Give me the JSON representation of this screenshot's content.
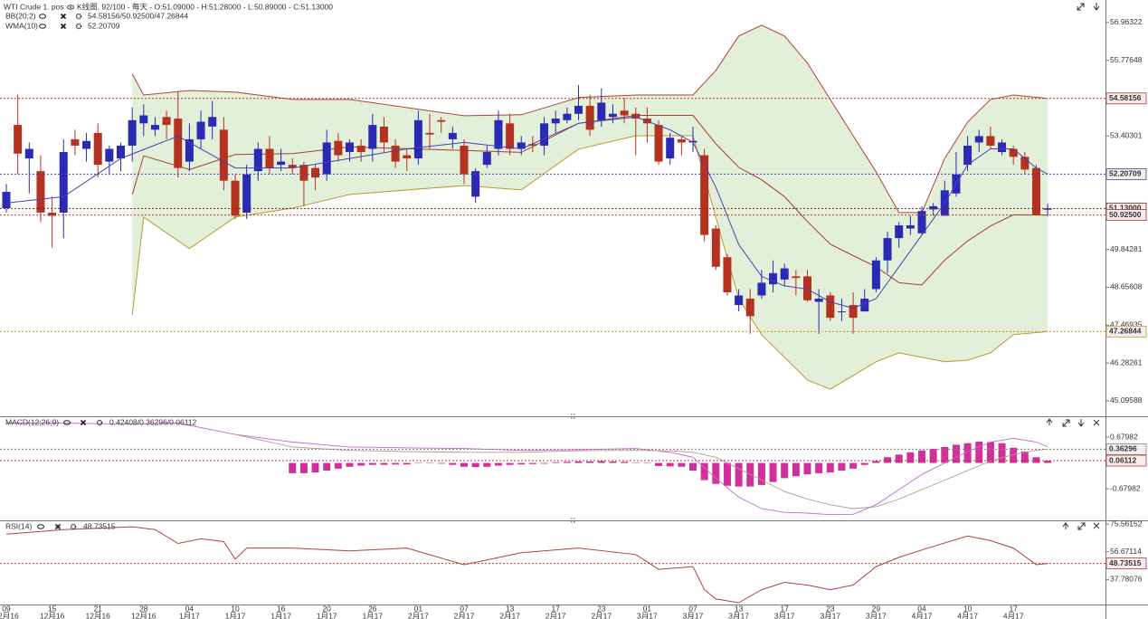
{
  "header": {
    "instrument": "WTI Crude 1. pos",
    "summary": "K线图, 92/100 - 每天 - O:51.09000 - H:51.28000 - L:50.89000 - C:51.13000"
  },
  "chart_data": [
    {
      "type": "candlestick",
      "categories": [
        "09",
        null,
        null,
        null,
        "15",
        null,
        null,
        null,
        "21",
        null,
        null,
        null,
        "28",
        null,
        null,
        null,
        "04",
        null,
        null,
        null,
        "10",
        null,
        null,
        null,
        "16",
        null,
        null,
        null,
        "20",
        null,
        null,
        null,
        "26",
        null,
        null,
        null,
        "01",
        null,
        null,
        null,
        "07",
        null,
        null,
        null,
        "13",
        null,
        null,
        null,
        "17",
        null,
        null,
        null,
        "23",
        null,
        null,
        null,
        "01",
        null,
        null,
        null,
        "07",
        null,
        null,
        null,
        "13",
        null,
        null,
        null,
        "17",
        null,
        null,
        null,
        "23",
        null,
        null,
        null,
        "29",
        null,
        null,
        null,
        "04",
        null,
        null,
        null,
        "10",
        null,
        null,
        null,
        "17",
        null,
        null,
        null
      ],
      "category_months": [
        "12月16",
        null,
        null,
        null,
        "12月16",
        null,
        null,
        null,
        "12月16",
        null,
        null,
        null,
        "12月16",
        null,
        null,
        null,
        "1月17",
        null,
        null,
        null,
        "1月17",
        null,
        null,
        null,
        "1月17",
        null,
        null,
        null,
        "1月17",
        null,
        null,
        null,
        "1月17",
        null,
        null,
        null,
        "2月17",
        null,
        null,
        null,
        "2月17",
        null,
        null,
        null,
        "2月17",
        null,
        null,
        null,
        "2月17",
        null,
        null,
        null,
        "2月17",
        null,
        null,
        null,
        "3月17",
        null,
        null,
        null,
        "3月17",
        null,
        null,
        null,
        "3月17",
        null,
        null,
        null,
        "3月17",
        null,
        null,
        null,
        "3月17",
        null,
        null,
        null,
        "3月17",
        null,
        null,
        null,
        "4月17",
        null,
        null,
        null,
        "4月17",
        null,
        null,
        null,
        "4月17",
        null,
        null,
        null
      ],
      "open": [
        51.14,
        53.75,
        52.7,
        52.3,
        51.0,
        51.0,
        53.3,
        53.0,
        53.5,
        52.6,
        52.7,
        53.1,
        53.8,
        53.6,
        54.0,
        53.95,
        52.6,
        53.3,
        53.7,
        53.6,
        52.0,
        51.0,
        52.3,
        53.0,
        52.5,
        52.5,
        52.5,
        52.4,
        52.2,
        53.25,
        52.9,
        53.1,
        53.0,
        53.7,
        53.1,
        52.8,
        52.7,
        53.5,
        53.9,
        53.3,
        53.1,
        51.5,
        52.5,
        53.0,
        53.8,
        53.0,
        53.15,
        53.1,
        53.8,
        53.9,
        54.1,
        54.35,
        53.9,
        54.0,
        54.2,
        54.1,
        53.95,
        53.75,
        52.7,
        53.3,
        53.2,
        52.8,
        50.5,
        49.6,
        48.1,
        48.3,
        48.4,
        48.75,
        48.9,
        49.0,
        49.0,
        48.2,
        48.4,
        47.9,
        48.1,
        47.9,
        48.6,
        49.5,
        50.2,
        50.5,
        50.35,
        51.1,
        50.9,
        51.6,
        52.5,
        53.2,
        53.4,
        52.9,
        53.0,
        52.75,
        52.4,
        51.09
      ],
      "high": [
        51.9,
        54.7,
        53.2,
        52.8,
        51.5,
        53.3,
        53.6,
        53.5,
        53.8,
        53.1,
        53.2,
        54.3,
        54.4,
        54.0,
        54.2,
        54.8,
        53.8,
        54.2,
        54.5,
        54.0,
        52.2,
        52.5,
        53.2,
        53.4,
        53.0,
        52.7,
        52.6,
        52.5,
        53.6,
        53.5,
        53.3,
        53.3,
        54.1,
        54.0,
        53.3,
        53.0,
        54.2,
        54.1,
        54.0,
        53.7,
        53.3,
        52.4,
        53.1,
        54.2,
        54.1,
        53.4,
        53.4,
        54.0,
        54.2,
        54.3,
        55.0,
        54.7,
        54.9,
        54.4,
        54.6,
        54.3,
        54.3,
        53.9,
        53.5,
        53.4,
        53.7,
        53.0,
        50.6,
        49.7,
        48.6,
        48.6,
        49.2,
        49.5,
        49.4,
        49.2,
        49.2,
        48.6,
        48.5,
        48.3,
        48.5,
        48.6,
        49.6,
        50.4,
        50.7,
        50.9,
        51.2,
        51.3,
        52.0,
        52.9,
        53.4,
        53.6,
        53.7,
        53.3,
        53.1,
        52.9,
        52.5,
        51.28
      ],
      "low": [
        51.0,
        52.2,
        51.6,
        50.7,
        49.9,
        50.2,
        52.8,
        52.6,
        52.1,
        52.2,
        52.3,
        52.6,
        53.4,
        53.4,
        53.3,
        52.1,
        52.3,
        53.0,
        53.3,
        51.7,
        50.8,
        50.8,
        52.0,
        52.2,
        52.3,
        52.2,
        51.2,
        51.7,
        52.0,
        52.6,
        52.6,
        52.6,
        52.6,
        52.9,
        52.4,
        52.3,
        52.5,
        53.0,
        53.5,
        53.0,
        51.9,
        51.3,
        52.4,
        52.8,
        52.8,
        52.8,
        52.9,
        52.8,
        53.5,
        53.8,
        53.9,
        53.4,
        53.7,
        53.8,
        53.8,
        52.8,
        53.2,
        52.5,
        52.5,
        52.8,
        52.9,
        50.1,
        49.2,
        48.4,
        47.9,
        47.2,
        48.3,
        48.5,
        48.7,
        48.4,
        48.2,
        47.2,
        47.6,
        47.6,
        47.2,
        47.9,
        48.5,
        49.1,
        49.9,
        50.3,
        50.3,
        50.9,
        50.9,
        51.5,
        52.3,
        52.9,
        53.0,
        52.8,
        52.5,
        52.2,
        50.9,
        50.89
      ],
      "close": [
        51.65,
        52.85,
        53.0,
        51.0,
        50.9,
        52.9,
        53.1,
        53.25,
        52.5,
        53.0,
        53.1,
        53.9,
        54.05,
        53.75,
        53.75,
        52.4,
        53.3,
        53.85,
        54.0,
        52.0,
        50.9,
        52.2,
        53.0,
        52.4,
        52.6,
        52.4,
        52.0,
        52.1,
        53.2,
        52.8,
        53.2,
        52.9,
        53.75,
        53.2,
        52.6,
        52.7,
        53.9,
        53.45,
        53.85,
        53.5,
        52.2,
        52.3,
        52.9,
        53.9,
        53.0,
        53.2,
        53.1,
        53.8,
        53.95,
        54.1,
        54.35,
        53.6,
        54.45,
        54.1,
        54.05,
        53.95,
        53.8,
        52.6,
        53.35,
        53.2,
        53.25,
        50.3,
        49.3,
        48.5,
        48.4,
        47.75,
        48.8,
        49.1,
        49.25,
        48.95,
        48.25,
        48.3,
        47.7,
        47.9,
        47.7,
        48.3,
        49.5,
        50.2,
        50.6,
        50.6,
        51.05,
        51.2,
        51.7,
        52.2,
        53.1,
        53.4,
        53.1,
        53.2,
        52.75,
        52.35,
        50.93,
        51.13
      ],
      "up_color": "#2a2ab4",
      "down_color": "#b4321f",
      "bands": {
        "x": [
          11,
          12,
          16,
          20,
          25,
          30,
          40,
          45,
          50,
          55,
          60,
          62,
          64,
          66,
          68,
          70,
          72,
          74,
          76,
          78,
          80,
          82,
          84,
          86,
          88,
          91
        ],
        "upper": [
          55.35,
          54.69,
          54.83,
          54.78,
          54.55,
          54.55,
          54.04,
          54.07,
          54.61,
          54.69,
          54.69,
          55.46,
          56.54,
          56.88,
          56.54,
          55.69,
          54.55,
          53.41,
          52.28,
          51.0,
          51.0,
          52.7,
          53.84,
          54.55,
          54.69,
          54.58156
        ],
        "middle": [
          51.57,
          52.78,
          52.35,
          52.82,
          52.85,
          53.06,
          52.95,
          52.89,
          53.8,
          54.05,
          54.05,
          53.16,
          52.42,
          52.03,
          51.5,
          50.72,
          50.01,
          49.65,
          49.3,
          48.8,
          48.73,
          49.51,
          50.11,
          50.58,
          50.93,
          50.925
        ],
        "lower": [
          47.79,
          50.86,
          49.87,
          50.86,
          51.14,
          51.57,
          51.85,
          51.71,
          52.99,
          53.41,
          53.41,
          50.86,
          48.3,
          47.17,
          46.46,
          45.75,
          45.46,
          45.89,
          46.32,
          46.6,
          46.46,
          46.32,
          46.37,
          46.6,
          47.17,
          47.26844
        ],
        "fill": "#e2f0d9",
        "upper_color": "#b0413e",
        "middle_color": "#a0412e",
        "lower_color": "#b89a2c"
      },
      "wma": {
        "x": [
          0,
          5,
          10,
          15,
          20,
          25,
          30,
          35,
          40,
          45,
          50,
          55,
          58,
          60,
          62,
          64,
          66,
          68,
          70,
          72,
          74,
          76,
          78,
          80,
          82,
          84,
          86,
          88,
          90,
          91
        ],
        "values": [
          51.3,
          51.5,
          52.7,
          53.4,
          52.4,
          52.4,
          52.7,
          53.0,
          53.2,
          53.0,
          53.8,
          54.0,
          53.6,
          53.2,
          51.8,
          50.0,
          49.0,
          48.7,
          48.6,
          48.2,
          48.0,
          48.3,
          49.3,
          50.3,
          51.3,
          52.5,
          53.0,
          53.0,
          52.4,
          52.20709
        ],
        "color": "#4b3fae"
      },
      "legend": [
        {
          "name": "BB(20;2)",
          "text": "54.58156/50.92500/47.26844",
          "color": "#b0413e"
        },
        {
          "name": "WMA(10)",
          "text": "52.20709",
          "color": "#6a3fb0"
        }
      ],
      "ylim": [
        44.61,
        57.67
      ],
      "yticks": [
        56.96322,
        55.77648,
        53.40301,
        49.84281,
        48.65608,
        47.46935,
        46.28261,
        45.09588
      ],
      "markers": [
        {
          "value": 54.58156,
          "color": "#c0392b"
        },
        {
          "value": 52.20709,
          "color": "#5a3fa0"
        },
        {
          "value": 51.13,
          "label": "51.13000",
          "color": "#7a2222"
        },
        {
          "value": 50.925,
          "label": "50.92500",
          "color": "#c0392b"
        },
        {
          "value": 47.26844,
          "color": "#c8962a"
        }
      ]
    },
    {
      "type": "bar",
      "values": [
        null,
        null,
        null,
        null,
        null,
        null,
        null,
        null,
        null,
        null,
        null,
        null,
        null,
        null,
        null,
        null,
        null,
        null,
        null,
        null,
        null,
        null,
        null,
        null,
        null,
        -0.27,
        -0.27,
        -0.25,
        -0.2,
        -0.15,
        -0.1,
        -0.07,
        -0.05,
        -0.05,
        -0.04,
        -0.04,
        0,
        0,
        -0.02,
        -0.05,
        -0.1,
        -0.11,
        -0.1,
        -0.07,
        -0.05,
        -0.04,
        -0.03,
        -0.02,
        0.02,
        0.03,
        0.04,
        0.04,
        0.05,
        0.04,
        0.03,
        0.01,
        -0.01,
        -0.08,
        -0.09,
        -0.1,
        -0.2,
        -0.45,
        -0.55,
        -0.6,
        -0.62,
        -0.62,
        -0.58,
        -0.5,
        -0.4,
        -0.35,
        -0.3,
        -0.27,
        -0.25,
        -0.2,
        -0.15,
        -0.05,
        0.05,
        0.15,
        0.22,
        0.28,
        0.33,
        0.37,
        0.42,
        0.48,
        0.52,
        0.56,
        0.55,
        0.52,
        0.4,
        0.3,
        0.15,
        0.06112
      ],
      "color": "#d0309a",
      "lines": [
        {
          "x": [
            0,
            5,
            10,
            15,
            20,
            25,
            30,
            35,
            40,
            45,
            50,
            55,
            58,
            60,
            62,
            64,
            66,
            68,
            70,
            72,
            74,
            76,
            78,
            80,
            82,
            84,
            86,
            88,
            90,
            91
          ],
          "values": [
            1.05,
            1.05,
            1.02,
            1.05,
            0.75,
            0.55,
            0.42,
            0.4,
            0.38,
            0.33,
            0.35,
            0.38,
            0.28,
            0.15,
            -0.4,
            -0.9,
            -1.2,
            -1.3,
            -1.32,
            -1.36,
            -1.35,
            -1.1,
            -0.7,
            -0.3,
            0.0,
            0.3,
            0.55,
            0.65,
            0.55,
            0.42408
          ],
          "color": "#c46ad6"
        },
        {
          "x": [
            20,
            25,
            30,
            35,
            40,
            45,
            50,
            55,
            58,
            60,
            62,
            64,
            66,
            68,
            70,
            72,
            74,
            76,
            78,
            80,
            82,
            84,
            86,
            88,
            90,
            91
          ],
          "values": [
            0.75,
            0.42,
            0.33,
            0.3,
            0.28,
            0.28,
            0.32,
            0.33,
            0.32,
            0.28,
            0.15,
            -0.15,
            -0.45,
            -0.75,
            -0.95,
            -1.1,
            -1.2,
            -1.15,
            -0.95,
            -0.7,
            -0.45,
            -0.2,
            0.05,
            0.22,
            0.33,
            0.36296
          ],
          "color": "#b8968a"
        }
      ],
      "legend": [
        {
          "name": "MACD(12;26;9)",
          "text": "0.42408/0.36296/0.06112",
          "color": "#c43ab0"
        }
      ],
      "ylim": [
        -1.51,
        1.18
      ],
      "yticks": [
        0.67982,
        -0.67982
      ],
      "markers": [
        {
          "value": 0.36296,
          "color": "#8a7a7a"
        },
        {
          "value": 0.06112,
          "color": "#c0392b"
        }
      ]
    },
    {
      "type": "line",
      "x": [
        0,
        5,
        11,
        13,
        15,
        17,
        19,
        20,
        21,
        25,
        30,
        35,
        40,
        45,
        50,
        55,
        57,
        60,
        61,
        62,
        64,
        66,
        68,
        70,
        72,
        74,
        76,
        78,
        80,
        84,
        86,
        88,
        90,
        91
      ],
      "values": [
        68.63,
        71.78,
        73.67,
        71.78,
        62.34,
        65.49,
        63.6,
        51.63,
        59.19,
        59.19,
        57.3,
        59.19,
        47.85,
        56.04,
        59.19,
        54.78,
        44.71,
        46.59,
        30.85,
        24.55,
        22.04,
        30.85,
        35.89,
        34.0,
        30.85,
        34.0,
        46.59,
        52.89,
        57.93,
        67.38,
        64.23,
        59.19,
        47.85,
        48.73515
      ],
      "color": "#b0413e",
      "legend": [
        {
          "name": "RSI(14)",
          "text": "48.73515",
          "color": "#b0413e"
        }
      ],
      "ylim": [
        20.78,
        76.82
      ],
      "yticks": [
        75.56152,
        56.67114,
        37.78076
      ],
      "markers": [
        {
          "value": 48.73515,
          "color": "#c0392b"
        }
      ]
    }
  ]
}
